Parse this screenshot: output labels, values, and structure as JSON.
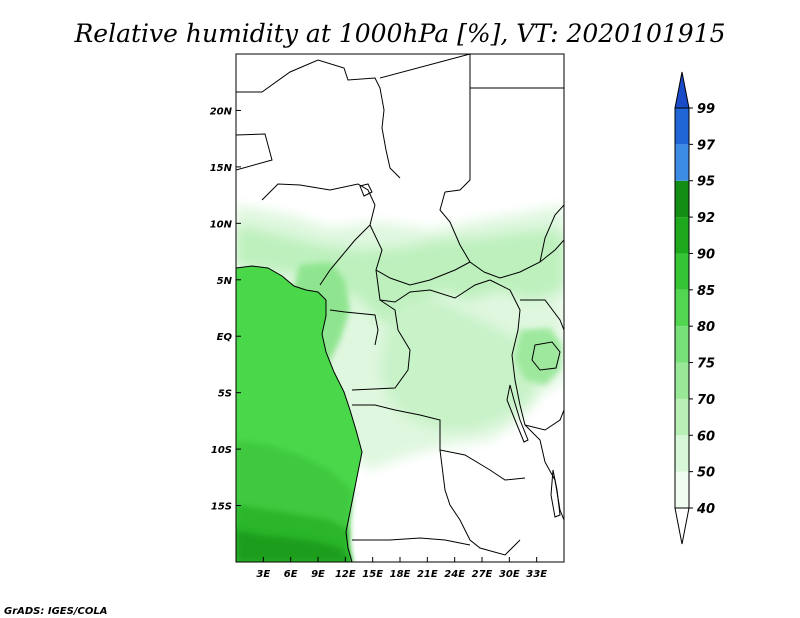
{
  "title": "Relative humidity at 1000hPa [%], VT: 2020101915",
  "credit": "GrADS: IGES/COLA",
  "map": {
    "lon_range": [
      0,
      36
    ],
    "lat_range": [
      -20,
      25
    ],
    "lon_ticks": [
      "3E",
      "6E",
      "9E",
      "12E",
      "15E",
      "18E",
      "21E",
      "24E",
      "27E",
      "30E",
      "33E"
    ],
    "lat_ticks": [
      "20N",
      "15N",
      "10N",
      "5N",
      "EQ",
      "5S",
      "10S",
      "15S"
    ],
    "ocean_color": "#4ad84a",
    "land_color": "#ffffff"
  },
  "colorbar": {
    "levels": [
      "40",
      "50",
      "60",
      "70",
      "75",
      "80",
      "85",
      "90",
      "92",
      "95",
      "97",
      "99"
    ],
    "colors": [
      "#ffffff",
      "#f0fcf0",
      "#d8f6d8",
      "#b8f0b8",
      "#98e898",
      "#78e078",
      "#52d652",
      "#34c434",
      "#1ea81e",
      "#138d13",
      "#3c8ce6",
      "#2166d6",
      "#1a4cc8"
    ]
  }
}
